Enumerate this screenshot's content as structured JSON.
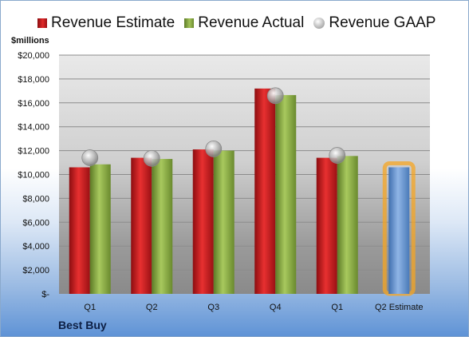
{
  "chart_data": {
    "type": "bar",
    "categories": [
      "Q1",
      "Q2",
      "Q3",
      "Q4",
      "Q1",
      "Q2 Estimate"
    ],
    "series": [
      {
        "name": "Revenue Estimate",
        "values": [
          10600,
          11400,
          12100,
          17200,
          11400,
          null
        ]
      },
      {
        "name": "Revenue Actual",
        "values": [
          10850,
          11300,
          12000,
          16650,
          11550,
          10600
        ]
      },
      {
        "name": "Revenue GAAP",
        "values": [
          11400,
          11350,
          12150,
          16600,
          11600,
          null
        ]
      }
    ],
    "highlight": {
      "category": "Q2 Estimate",
      "note_color": "#f5a623"
    },
    "ylabel": "$millions",
    "ylim": [
      0,
      20000
    ],
    "yticks": [
      0,
      2000,
      4000,
      6000,
      8000,
      10000,
      12000,
      14000,
      16000,
      18000,
      20000
    ],
    "ytick_labels": [
      "$-",
      "$2,000",
      "$4,000",
      "$6,000",
      "$8,000",
      "$10,000",
      "$12,000",
      "$14,000",
      "$16,000",
      "$18,000",
      "$20,000"
    ],
    "grid": true,
    "legend_position": "top",
    "footer": "Best Buy",
    "colors": {
      "estimate": "#cc1f1f",
      "actual": "#8fb04a",
      "gaap": "#bdbdbd",
      "estimate_bar_future": "#6b9bd6"
    }
  }
}
